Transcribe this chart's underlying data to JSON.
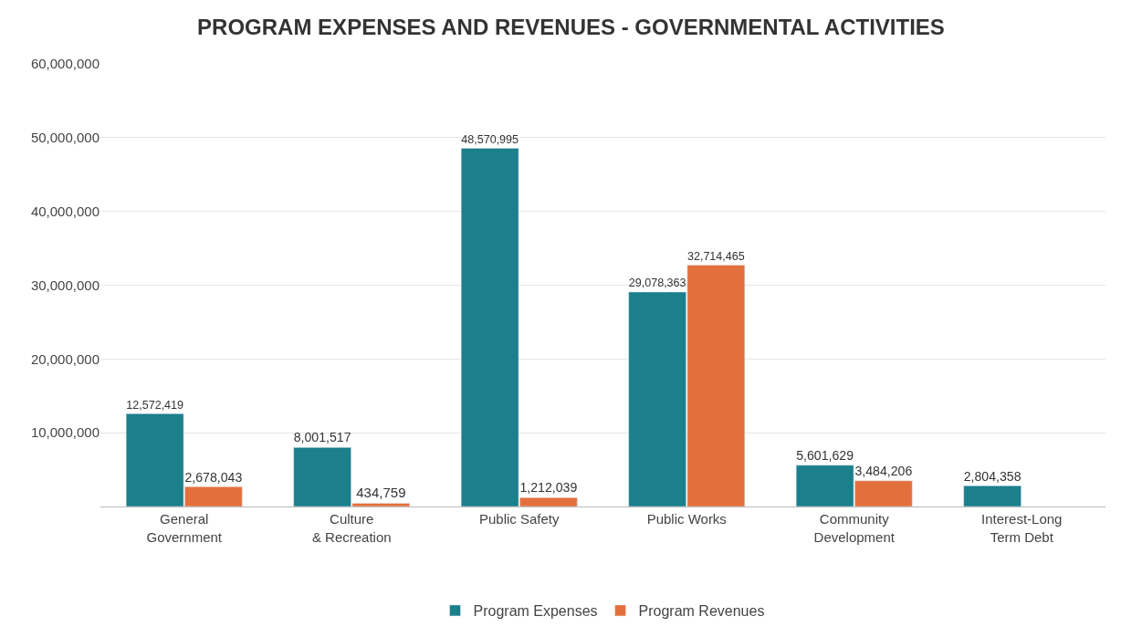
{
  "chart_data": {
    "type": "bar",
    "title": "PROGRAM EXPENSES AND REVENUES - GOVERNMENTAL ACTIVITIES",
    "categories": [
      "General Government",
      "Culture & Recreation",
      "Public Safety",
      "Public Works",
      "Community Development",
      "Interest-Long Term Debt"
    ],
    "series": [
      {
        "name": "Program Expenses",
        "color": "#1b7f8c",
        "values": [
          12572419,
          8001517,
          48570995,
          29078363,
          5601629,
          2804358
        ],
        "value_labels": [
          "12,572,419",
          "8,001,517",
          "48,570,995",
          "29,078,363",
          "5,601,629",
          "2,804,358"
        ]
      },
      {
        "name": "Program Revenues",
        "color": "#e3703c",
        "values": [
          2678043,
          434759,
          1212039,
          32714465,
          3484206,
          null
        ],
        "value_labels": [
          "2,678,043",
          "434,759",
          "1,212,039",
          "32,714,465",
          "3,484,206",
          null
        ]
      }
    ],
    "ylim": [
      0,
      60000000
    ],
    "yticks": [
      {
        "value": 0,
        "label": null
      },
      {
        "value": 10000000,
        "label": "10,000,000"
      },
      {
        "value": 20000000,
        "label": "20,000,000"
      },
      {
        "value": 30000000,
        "label": "30,000,000"
      },
      {
        "value": 40000000,
        "label": "40,000,000"
      },
      {
        "value": 50000000,
        "label": "50,000,000"
      },
      {
        "value": 60000000,
        "label": "60,000,000"
      }
    ],
    "grid": "y",
    "legend": "bottom"
  }
}
